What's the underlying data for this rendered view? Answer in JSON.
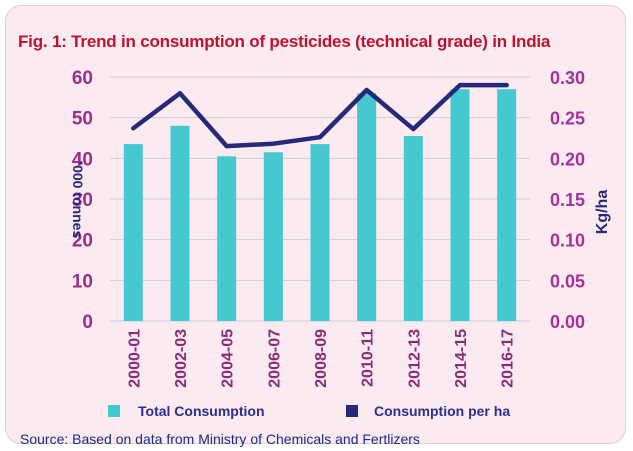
{
  "colors": {
    "background": "#fbeaf0",
    "title": "#c0122e",
    "bars": "#45c8cf",
    "line": "#26287a",
    "left_axis_text": "#9a2e8a",
    "right_axis_text": "#a5329a",
    "category_text": "#8a2b7a",
    "grid": "#cfcfd6",
    "legend_text": "#2a2f8f",
    "source_text": "#1b2a8a"
  },
  "chart_data": {
    "type": "bar",
    "title": "Fig. 1: Trend in consumption of pesticides (technical grade) in India",
    "categories": [
      "2000-01",
      "2002-03",
      "2004-05",
      "2006-07",
      "2008-09",
      "2010-11",
      "2012-13",
      "2014-15",
      "2016-17"
    ],
    "series": [
      {
        "name": "Total Consumption",
        "type": "bar",
        "axis": "left",
        "values": [
          43.5,
          48,
          40.5,
          41.5,
          43.5,
          56,
          45.5,
          57,
          57
        ]
      },
      {
        "name": "Consumption per ha",
        "type": "line",
        "axis": "right",
        "values": [
          0.237,
          0.28,
          0.215,
          0.218,
          0.226,
          0.284,
          0.236,
          0.29,
          0.29
        ]
      }
    ],
    "ylabel": "'000 tonnes",
    "y2label": "Kg/ha",
    "ylim": [
      0,
      60
    ],
    "y2lim": [
      0,
      0.3
    ],
    "yticks": [
      "0",
      "10",
      "20",
      "30",
      "40",
      "50",
      "60"
    ],
    "y2ticks": [
      "0.00",
      "0.05",
      "0.10",
      "0.15",
      "0.20",
      "0.25",
      "0.30"
    ],
    "grid": true,
    "legend": "bottom"
  },
  "source": "Source: Based on data from Ministry of Chemicals and Fertlizers"
}
